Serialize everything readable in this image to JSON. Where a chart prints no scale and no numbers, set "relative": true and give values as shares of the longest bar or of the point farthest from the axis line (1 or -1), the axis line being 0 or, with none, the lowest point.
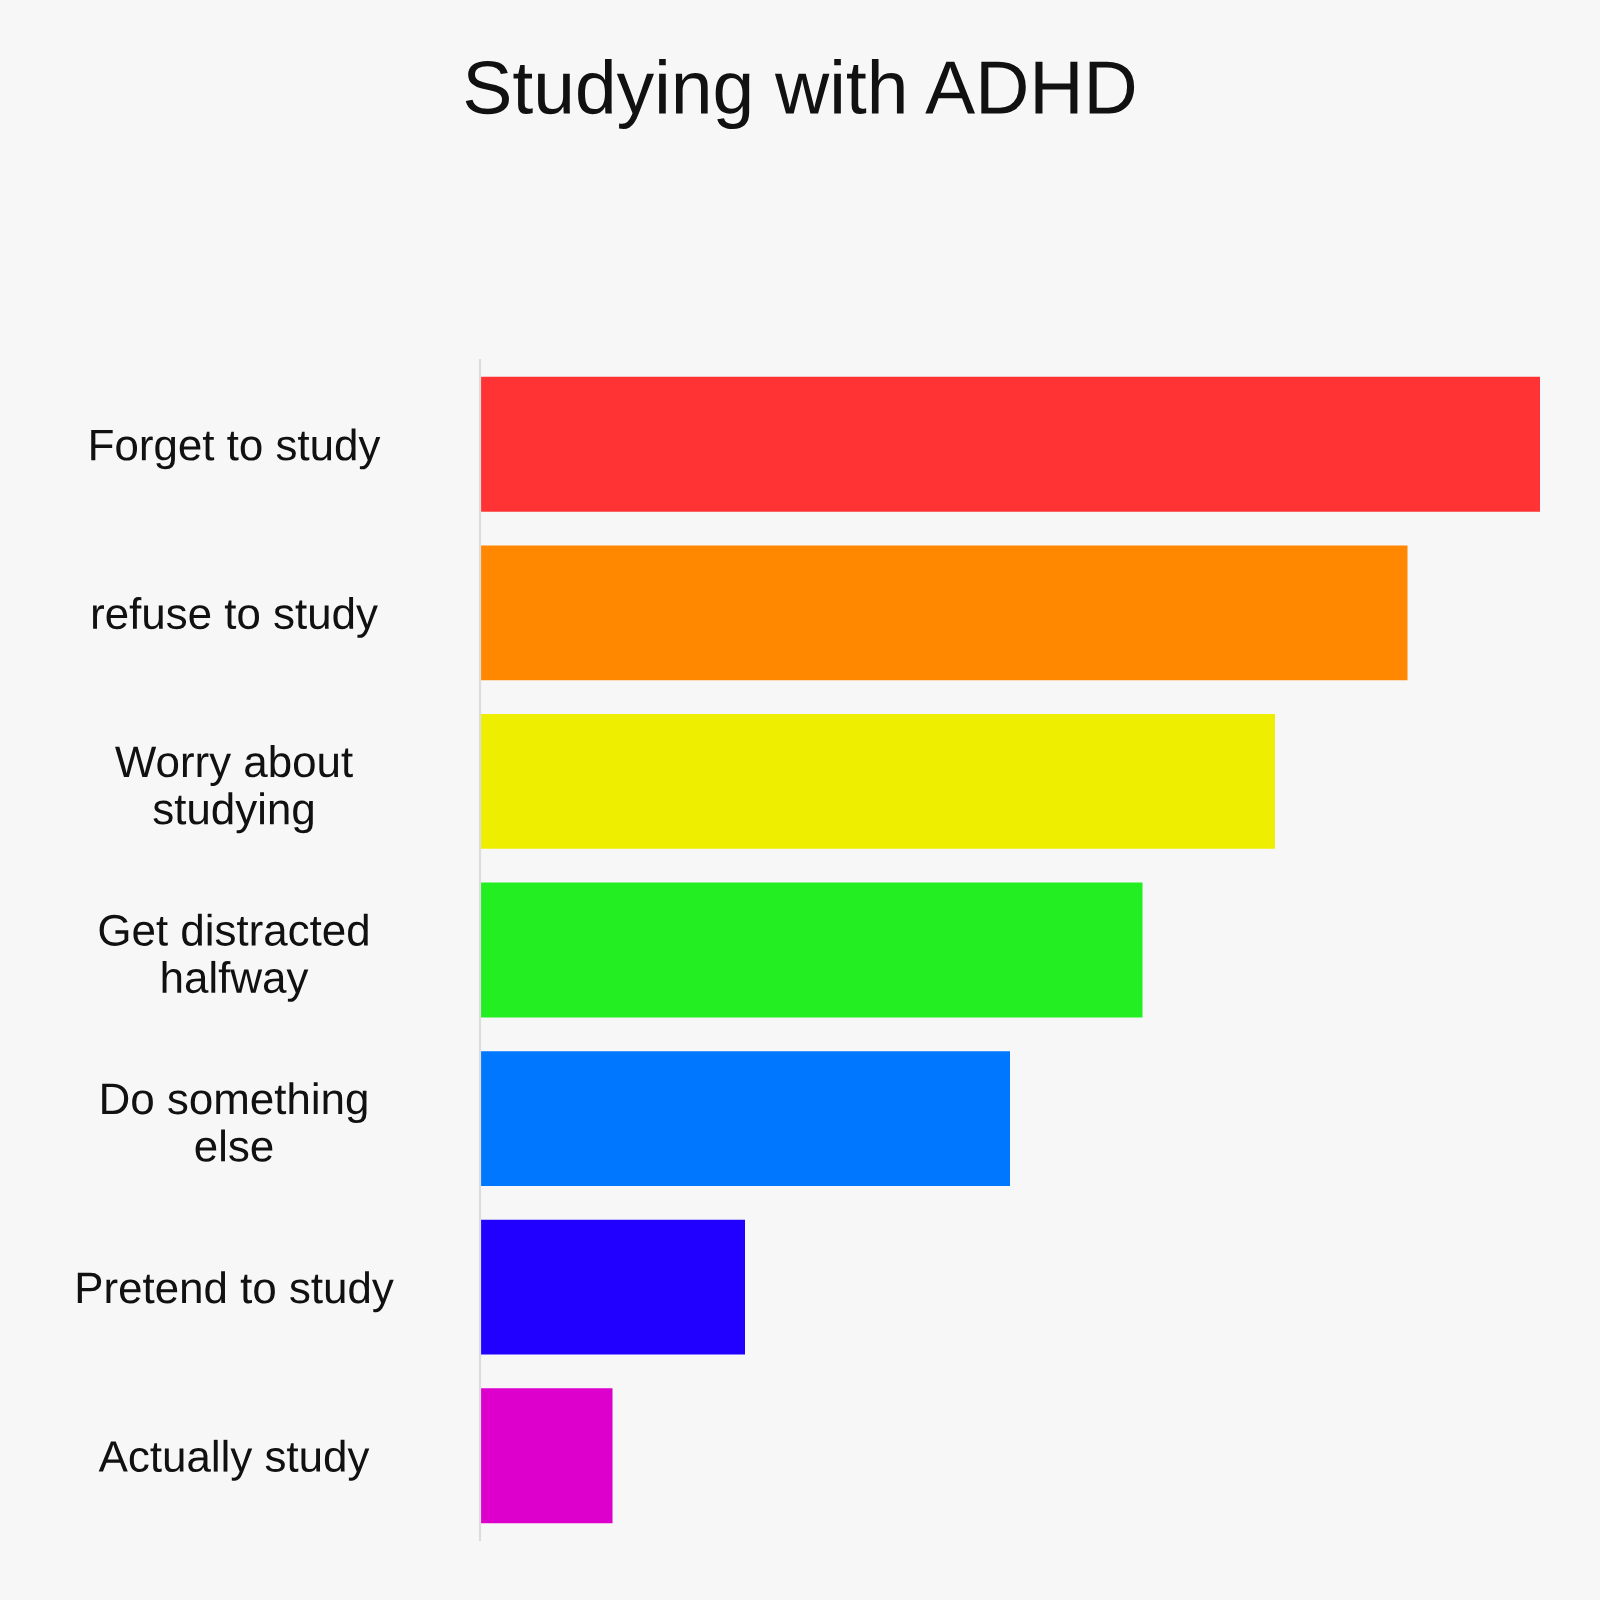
{
  "chart_data": {
    "type": "bar",
    "orientation": "horizontal",
    "relative": true,
    "title": "Studying with ADHD",
    "categories": [
      "Forget to study",
      "refuse to study",
      "Worry about\nstudying",
      "Get distracted\nhalfway",
      "Do something\nelse",
      "Pretend to study",
      "Actually study"
    ],
    "values": [
      1,
      0.875,
      0.75,
      0.625,
      0.5,
      0.25,
      0.125
    ],
    "colors": [
      "#ff3333",
      "#ff8800",
      "#eeee00",
      "#22ee22",
      "#0077ff",
      "#2200ff",
      "#dd00cc"
    ],
    "grid": false,
    "legend": false
  }
}
